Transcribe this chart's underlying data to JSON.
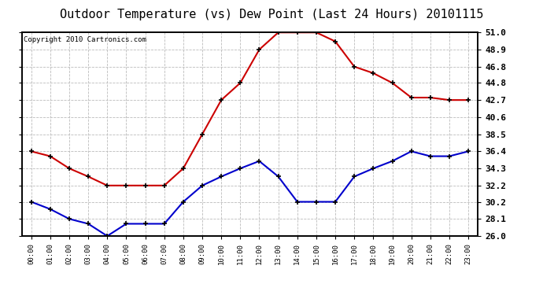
{
  "title": "Outdoor Temperature (vs) Dew Point (Last 24 Hours) 20101115",
  "copyright": "Copyright 2010 Cartronics.com",
  "hours": [
    "00:00",
    "01:00",
    "02:00",
    "03:00",
    "04:00",
    "05:00",
    "06:00",
    "07:00",
    "08:00",
    "09:00",
    "10:00",
    "11:00",
    "12:00",
    "13:00",
    "14:00",
    "15:00",
    "16:00",
    "17:00",
    "18:00",
    "19:00",
    "20:00",
    "21:00",
    "22:00",
    "23:00"
  ],
  "temp_red": [
    36.4,
    35.8,
    34.3,
    33.3,
    32.2,
    32.2,
    32.2,
    32.2,
    34.3,
    38.5,
    42.7,
    44.8,
    48.9,
    51.0,
    51.0,
    51.0,
    49.9,
    46.8,
    46.0,
    44.8,
    43.0,
    43.0,
    42.7,
    42.7
  ],
  "dew_blue": [
    30.2,
    29.3,
    28.1,
    27.5,
    26.0,
    27.5,
    27.5,
    27.5,
    30.2,
    32.2,
    33.3,
    34.3,
    35.2,
    33.3,
    30.2,
    30.2,
    30.2,
    33.3,
    34.3,
    35.2,
    36.4,
    35.8,
    35.8,
    36.4
  ],
  "ylim": [
    26.0,
    51.0
  ],
  "yticks": [
    26.0,
    28.1,
    30.2,
    32.2,
    34.3,
    36.4,
    38.5,
    40.6,
    42.7,
    44.8,
    46.8,
    48.9,
    51.0
  ],
  "temp_color": "#cc0000",
  "dew_color": "#0000cc",
  "bg_color": "#ffffff",
  "plot_bg": "#ffffff",
  "grid_color": "#bbbbbb",
  "title_fontsize": 11,
  "copyright_fontsize": 6.5
}
